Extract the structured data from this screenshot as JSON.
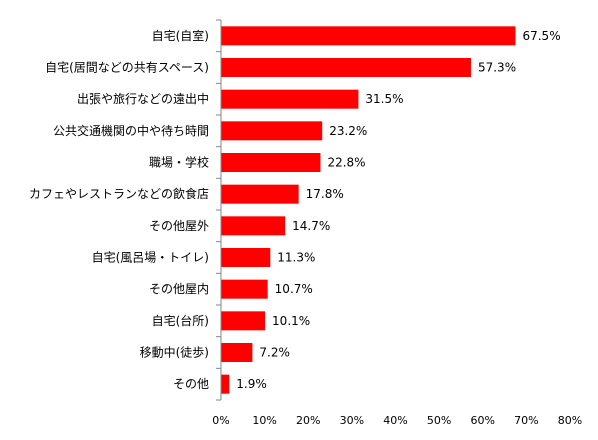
{
  "chart_data": {
    "type": "bar",
    "orientation": "horizontal",
    "categories": [
      "自宅(自室)",
      "自宅(居間などの共有スペース)",
      "出張や旅行などの遠出中",
      "公共交通機関の中や待ち時間",
      "職場・学校",
      "カフェやレストランなどの飲食店",
      "その他屋外",
      "自宅(風呂場・トイレ)",
      "その他屋内",
      "自宅(台所)",
      "移動中(徒歩)",
      "その他"
    ],
    "values": [
      67.5,
      57.3,
      31.5,
      23.2,
      22.8,
      17.8,
      14.7,
      11.3,
      10.7,
      10.1,
      7.2,
      1.9
    ],
    "value_labels": [
      "67.5%",
      "57.3%",
      "31.5%",
      "23.2%",
      "22.8%",
      "17.8%",
      "14.7%",
      "11.3%",
      "10.7%",
      "10.1%",
      "7.2%",
      "1.9%"
    ],
    "xlim": [
      0,
      80
    ],
    "x_ticks": [
      0,
      10,
      20,
      30,
      40,
      50,
      60,
      70,
      80
    ],
    "x_tick_labels": [
      "0%",
      "10%",
      "20%",
      "30%",
      "40%",
      "50%",
      "60%",
      "70%",
      "80%"
    ],
    "bar_color": "#ff0000",
    "grid": false,
    "legend": "none"
  }
}
